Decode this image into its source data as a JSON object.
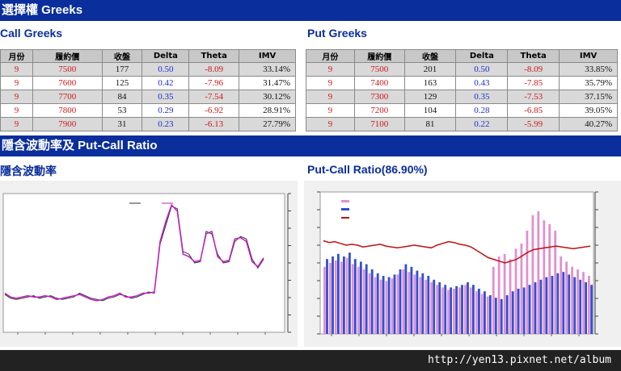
{
  "header1": "選擇權 Greeks",
  "call": {
    "title": "Call Greeks",
    "headers": [
      "月份",
      "履約價",
      "收盤",
      "Delta",
      "Theta",
      "IMV"
    ],
    "rows": [
      [
        "9",
        "7500",
        "177",
        "0.50",
        "-8.09",
        "33.14%"
      ],
      [
        "9",
        "7600",
        "125",
        "0.42",
        "-7.96",
        "31.47%"
      ],
      [
        "9",
        "7700",
        "84",
        "0.35",
        "-7.54",
        "30.12%"
      ],
      [
        "9",
        "7800",
        "53",
        "0.29",
        "-6.92",
        "28.91%"
      ],
      [
        "9",
        "7900",
        "31",
        "0.23",
        "-6.13",
        "27.79%"
      ]
    ]
  },
  "put": {
    "title": "Put Greeks",
    "headers": [
      "月份",
      "履約價",
      "收盤",
      "Delta",
      "Theta",
      "IMV"
    ],
    "rows": [
      [
        "9",
        "7500",
        "201",
        "0.50",
        "-8.09",
        "33.85%"
      ],
      [
        "9",
        "7400",
        "163",
        "0.43",
        "-7.85",
        "35.79%"
      ],
      [
        "9",
        "7300",
        "129",
        "0.35",
        "-7.53",
        "37.15%"
      ],
      [
        "9",
        "7200",
        "104",
        "0.28",
        "-6.85",
        "39.05%"
      ],
      [
        "9",
        "7100",
        "81",
        "0.22",
        "-5.99",
        "40.27%"
      ]
    ]
  },
  "header2": "隱含波動率及 Put-Call Ratio",
  "iv_title": "隱含波動率",
  "pcr_title": "Put-Call Ratio(86.90%)",
  "footer_url": "http://yen13.pixnet.net/album",
  "colors": {
    "header_bg": "#0a2e9c",
    "call_iv_line": "#c020c0",
    "put_iv_line": "#303030",
    "pcr_line": "#c01010",
    "put_bar": "#3050d0",
    "call_bar": "#e090d0",
    "price_red": "#d01818",
    "delta_blue": "#1c2fd0"
  },
  "chart_data": [
    {
      "type": "line",
      "title": "隱含波動率",
      "series": [
        {
          "values": [
            30,
            27,
            26,
            27,
            28,
            29,
            27,
            28,
            29,
            27,
            26,
            27,
            28,
            31,
            29,
            27,
            26,
            25,
            27,
            28,
            30,
            29,
            27,
            28,
            30,
            32,
            31,
            70,
            85,
            100,
            98,
            64,
            62,
            55,
            56,
            80,
            78,
            62,
            55,
            56,
            72,
            76,
            74,
            58,
            51,
            58
          ]
        },
        {
          "values": [
            31,
            28,
            27,
            28,
            29,
            28,
            28,
            29,
            28,
            26,
            27,
            28,
            29,
            30,
            28,
            26,
            25,
            26,
            28,
            29,
            31,
            28,
            28,
            29,
            31,
            31,
            32,
            72,
            88,
            101,
            96,
            62,
            60,
            56,
            57,
            78,
            80,
            60,
            56,
            57,
            74,
            75,
            72,
            56,
            52,
            59
          ]
        }
      ]
    },
    {
      "type": "bar",
      "title": "Put-Call Ratio(86.90%)",
      "series": [
        {
          "values": [
            58,
            60,
            62,
            60,
            63,
            58,
            56,
            54,
            50,
            47,
            45,
            44,
            46,
            50,
            54,
            52,
            49,
            47,
            45,
            42,
            40,
            38,
            36,
            37,
            38,
            40,
            38,
            35,
            33,
            30,
            28,
            27,
            30,
            33,
            35,
            36,
            38,
            40,
            42,
            44,
            45,
            47,
            48,
            46,
            44,
            42,
            40,
            38
          ]
        },
        {
          "values": [
            52,
            55,
            57,
            56,
            59,
            54,
            52,
            50,
            47,
            44,
            42,
            41,
            43,
            46,
            50,
            48,
            46,
            44,
            42,
            40,
            38,
            36,
            34,
            35,
            36,
            38,
            36,
            33,
            31,
            29,
            52,
            60,
            62,
            58,
            66,
            70,
            80,
            92,
            95,
            88,
            85,
            80,
            60,
            56,
            52,
            50,
            48,
            45
          ]
        },
        {
          "values": [
            105,
            103,
            104,
            102,
            100,
            101,
            100,
            98,
            99,
            100,
            101,
            99,
            98,
            97,
            98,
            99,
            100,
            99,
            98,
            97,
            100,
            102,
            104,
            103,
            101,
            100,
            98,
            94,
            90,
            86,
            84,
            82,
            80,
            82,
            84,
            88,
            92,
            95,
            96,
            97,
            98,
            99,
            98,
            97,
            96,
            97,
            98,
            99
          ]
        }
      ]
    }
  ]
}
